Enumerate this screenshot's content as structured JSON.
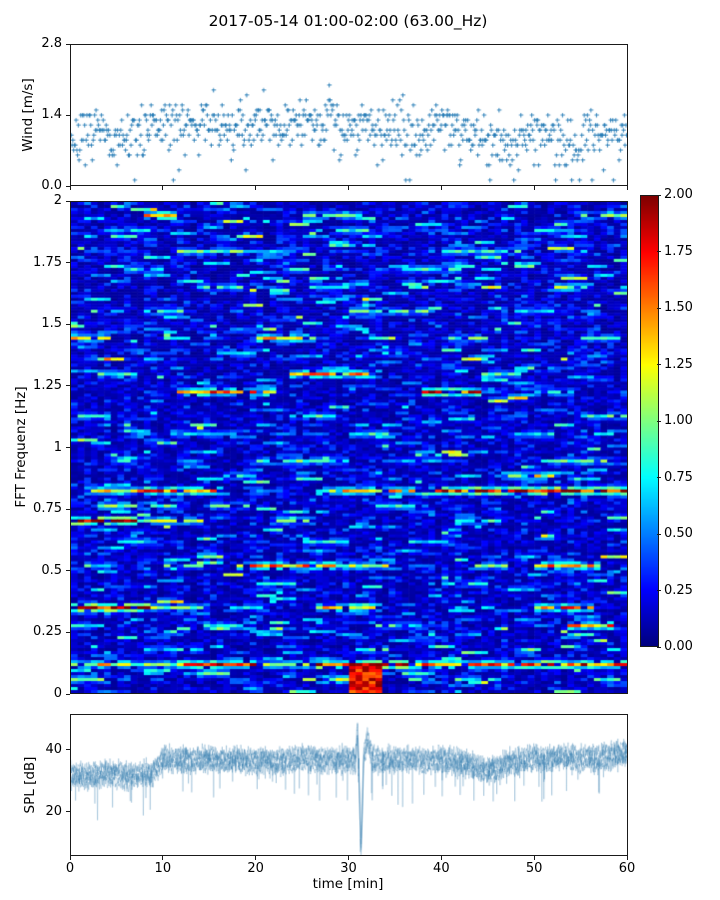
{
  "figure": {
    "title": "2017-05-14 01:00-02:00 (63.00_Hz)",
    "background": "#ffffff"
  },
  "wind_plot": {
    "ylabel": "Wind [m/s]",
    "yticks": [
      "0.0",
      "1.4",
      "2.8"
    ],
    "marker": "+",
    "marker_color": "#1f77b4"
  },
  "spectrogram": {
    "ylabel": "FFT Frequenz [Hz]",
    "yticks": [
      "0",
      "0.25",
      "0.5",
      "0.75",
      "1",
      "1.25",
      "1.5",
      "1.75",
      "2"
    ]
  },
  "colorbar": {
    "ticks": [
      "0.00",
      "0.25",
      "0.50",
      "0.75",
      "1.00",
      "1.25",
      "1.50",
      "1.75",
      "2.00"
    ],
    "colormap": "jet",
    "clim": [
      0,
      2
    ]
  },
  "spl_plot": {
    "ylabel": "SPL [dB]",
    "yticks": [
      "20",
      "40"
    ],
    "xlabel": "time [min]",
    "xticks": [
      "0",
      "10",
      "20",
      "30",
      "40",
      "50",
      "60"
    ],
    "line_color": "#3179ac"
  },
  "chart_data": [
    {
      "type": "scatter",
      "name": "wind",
      "title": "2017-05-14 01:00-02:00 (63.00_Hz)",
      "xlabel": "time [min]",
      "ylabel": "Wind [m/s]",
      "x_range": [
        0,
        60
      ],
      "ylim": [
        0,
        2.8
      ],
      "marker": "+",
      "color": "#1f77b4",
      "quantization_mps": 0.1,
      "points_per_minute": 12,
      "spread_mps": 0.5,
      "mean_per_minute": [
        0.9,
        1.0,
        1.05,
        0.95,
        0.85,
        0.9,
        1.0,
        1.1,
        1.15,
        1.2,
        1.2,
        1.25,
        1.2,
        1.15,
        1.25,
        1.2,
        1.15,
        1.1,
        1.2,
        1.25,
        1.3,
        1.2,
        1.15,
        1.25,
        1.2,
        1.3,
        1.35,
        1.3,
        1.25,
        1.2,
        1.2,
        1.25,
        1.2,
        1.1,
        1.15,
        1.2,
        1.1,
        1.05,
        1.15,
        1.25,
        1.3,
        1.2,
        1.1,
        1.05,
        0.95,
        0.85,
        0.9,
        0.8,
        1.0,
        1.05,
        1.1,
        1.05,
        0.95,
        0.9,
        0.85,
        1.0,
        1.05,
        1.0,
        1.1,
        1.05
      ]
    },
    {
      "type": "heatmap",
      "name": "fft-spectrogram",
      "xlabel": "time [min]",
      "ylabel": "FFT Frequenz [Hz]",
      "x_range": [
        0,
        60
      ],
      "y_range": [
        0,
        2
      ],
      "clim": [
        0,
        2
      ],
      "colormap": "jet",
      "n_cols": 84,
      "n_rows": 164,
      "background": {
        "base": 0.05,
        "spread": 0.42
      },
      "hotspot": {
        "t": [
          30,
          33.5
        ],
        "f": [
          0,
          0.12
        ],
        "value": 2.0
      },
      "bands": [
        {
          "f": 0.05,
          "seg": [
            [
              0,
              4,
              1.0
            ],
            [
              27,
              30,
              1.2
            ],
            [
              42,
              44,
              0.8
            ]
          ]
        },
        {
          "f": 0.08,
          "seg": [
            [
              14,
              17,
              0.9
            ],
            [
              36,
              40,
              0.8
            ]
          ]
        },
        {
          "f": 0.12,
          "seg": [
            [
              0,
              6,
              1.3
            ],
            [
              7,
              12,
              1.0
            ],
            [
              12,
              20,
              1.6
            ],
            [
              21,
              26,
              1.1
            ],
            [
              27,
              36,
              1.9
            ],
            [
              37,
              48,
              1.5
            ],
            [
              49,
              60,
              1.6
            ]
          ]
        },
        {
          "f": 0.18,
          "seg": [
            [
              8,
              14,
              0.7
            ],
            [
              30,
              34,
              0.8
            ]
          ]
        },
        {
          "f": 0.27,
          "seg": [
            [
              0,
              3,
              0.8
            ],
            [
              14,
              18,
              0.9
            ],
            [
              33,
              38,
              0.8
            ],
            [
              54,
              58,
              1.4
            ]
          ]
        },
        {
          "f": 0.35,
          "seg": [
            [
              0,
              8,
              2.0
            ],
            [
              9,
              14,
              1.0
            ],
            [
              17,
              21,
              0.8
            ],
            [
              27,
              33,
              1.3
            ],
            [
              50,
              56,
              1.5
            ]
          ]
        },
        {
          "f": 0.44,
          "seg": [
            [
              20,
              24,
              0.7
            ],
            [
              40,
              45,
              0.8
            ]
          ]
        },
        {
          "f": 0.52,
          "seg": [
            [
              0,
              4,
              0.8
            ],
            [
              10,
              14,
              0.9
            ],
            [
              18,
              28,
              1.4
            ],
            [
              29,
              35,
              1.1
            ],
            [
              44,
              47,
              0.9
            ],
            [
              50,
              57,
              1.4
            ]
          ]
        },
        {
          "f": 0.62,
          "seg": [
            [
              5,
              9,
              0.7
            ],
            [
              25,
              30,
              0.8
            ],
            [
              37,
              41,
              0.7
            ]
          ]
        },
        {
          "f": 0.7,
          "seg": [
            [
              0,
              7,
              1.9
            ],
            [
              8,
              14,
              1.2
            ],
            [
              22,
              26,
              0.9
            ],
            [
              42,
              46,
              0.8
            ]
          ]
        },
        {
          "f": 0.76,
          "seg": [
            [
              3,
              9,
              1.1
            ],
            [
              15,
              19,
              0.8
            ],
            [
              33,
              37,
              0.9
            ]
          ]
        },
        {
          "f": 0.82,
          "seg": [
            [
              2,
              8,
              1.3
            ],
            [
              8,
              16,
              1.6
            ],
            [
              28,
              37,
              1.3
            ],
            [
              38,
              43,
              1.7
            ],
            [
              44,
              60,
              2.0
            ]
          ]
        },
        {
          "f": 0.88,
          "seg": [
            [
              17,
              20,
              0.8
            ],
            [
              47,
              52,
              1.2
            ]
          ]
        },
        {
          "f": 0.95,
          "seg": [
            [
              4,
              8,
              0.8
            ],
            [
              20,
              30,
              0.9
            ],
            [
              36,
              40,
              0.7
            ],
            [
              52,
              58,
              0.9
            ]
          ]
        },
        {
          "f": 1.05,
          "seg": [
            [
              12,
              16,
              0.7
            ],
            [
              30,
              34,
              0.8
            ],
            [
              48,
              52,
              0.7
            ]
          ]
        },
        {
          "f": 1.13,
          "seg": [
            [
              0,
              4,
              0.8
            ],
            [
              24,
              28,
              0.9
            ],
            [
              55,
              60,
              0.9
            ]
          ]
        },
        {
          "f": 1.22,
          "seg": [
            [
              12,
              22,
              1.5
            ],
            [
              38,
              44,
              1.7
            ],
            [
              50,
              54,
              0.9
            ]
          ]
        },
        {
          "f": 1.3,
          "seg": [
            [
              3,
              7,
              0.9
            ],
            [
              24,
              32,
              1.4
            ],
            [
              45,
              48,
              0.8
            ]
          ]
        },
        {
          "f": 1.38,
          "seg": [
            [
              16,
              20,
              0.8
            ],
            [
              33,
              36,
              0.7
            ]
          ]
        },
        {
          "f": 1.45,
          "seg": [
            [
              0,
              4,
              1.2
            ],
            [
              20,
              26,
              1.3
            ],
            [
              41,
              45,
              0.9
            ],
            [
              55,
              59,
              0.8
            ]
          ]
        },
        {
          "f": 1.55,
          "seg": [
            [
              8,
              12,
              0.9
            ],
            [
              30,
              38,
              0.9
            ],
            [
              48,
              52,
              0.7
            ]
          ]
        },
        {
          "f": 1.65,
          "seg": [
            [
              14,
              18,
              0.8
            ],
            [
              26,
              30,
              0.7
            ],
            [
              52,
              56,
              1.2
            ]
          ]
        },
        {
          "f": 1.72,
          "seg": [
            [
              6,
              10,
              0.8
            ],
            [
              36,
              42,
              0.9
            ]
          ]
        },
        {
          "f": 1.8,
          "seg": [
            [
              12,
              18,
              0.9
            ],
            [
              20,
              24,
              0.7
            ],
            [
              40,
              48,
              0.8
            ]
          ]
        },
        {
          "f": 1.88,
          "seg": [
            [
              4,
              8,
              0.7
            ],
            [
              28,
              32,
              0.8
            ],
            [
              50,
              54,
              0.7
            ]
          ]
        },
        {
          "f": 1.95,
          "seg": [
            [
              8,
              11,
              1.5
            ],
            [
              25,
              31,
              0.9
            ],
            [
              55,
              60,
              1.0
            ]
          ]
        }
      ]
    },
    {
      "type": "line",
      "name": "spl",
      "xlabel": "time [min]",
      "ylabel": "SPL [dB]",
      "x_range": [
        0,
        60
      ],
      "ylim": [
        5.8,
        51.6
      ],
      "color": "#3179ac",
      "noise_db": 3,
      "traces": 5,
      "mean_per_minute": [
        32,
        32,
        31.5,
        32,
        32.5,
        32,
        31.5,
        32,
        32,
        33,
        37.5,
        37,
        37.5,
        36.5,
        37,
        37.5,
        36.5,
        37,
        37,
        36.5,
        36.5,
        37,
        36,
        36.5,
        37,
        37.5,
        37,
        36.5,
        37,
        37,
        37,
        36,
        37,
        37,
        36.5,
        37,
        37.5,
        37,
        36.5,
        37,
        37,
        36.5,
        36.5,
        35.5,
        34,
        33.5,
        34,
        36,
        36.5,
        37,
        37.5,
        37,
        37.5,
        38,
        37.5,
        37,
        37.5,
        37,
        38.5,
        39
      ],
      "events": {
        "pre_peak": {
          "t": 30.9,
          "db": 47,
          "width": 0.2
        },
        "dip": {
          "t": 31.3,
          "db": 8,
          "width": 0.28
        },
        "post_peak": {
          "t": 32.0,
          "db": 46,
          "width": 0.5
        }
      }
    }
  ]
}
